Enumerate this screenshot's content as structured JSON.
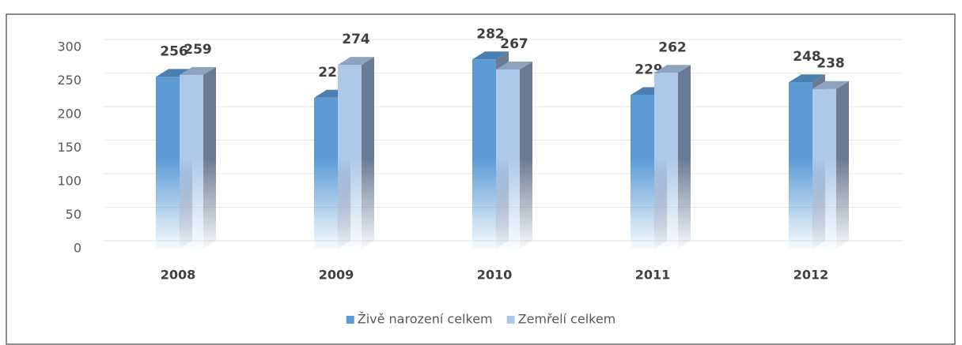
{
  "chart_data": {
    "type": "bar3d",
    "categories": [
      "2008",
      "2009",
      "2010",
      "2011",
      "2012"
    ],
    "series": [
      {
        "name": "Živě narození celkem",
        "color": "#5b9bd5",
        "values": [
          256,
          225,
          282,
          229,
          248
        ]
      },
      {
        "name": "Zemřelí celkem",
        "color": "#adc8e8",
        "values": [
          259,
          274,
          267,
          262,
          238
        ]
      }
    ],
    "ylim": [
      0,
      300
    ],
    "yticks": [
      0,
      50,
      100,
      150,
      200,
      250,
      300
    ],
    "grid": true,
    "legend": "bottom"
  }
}
